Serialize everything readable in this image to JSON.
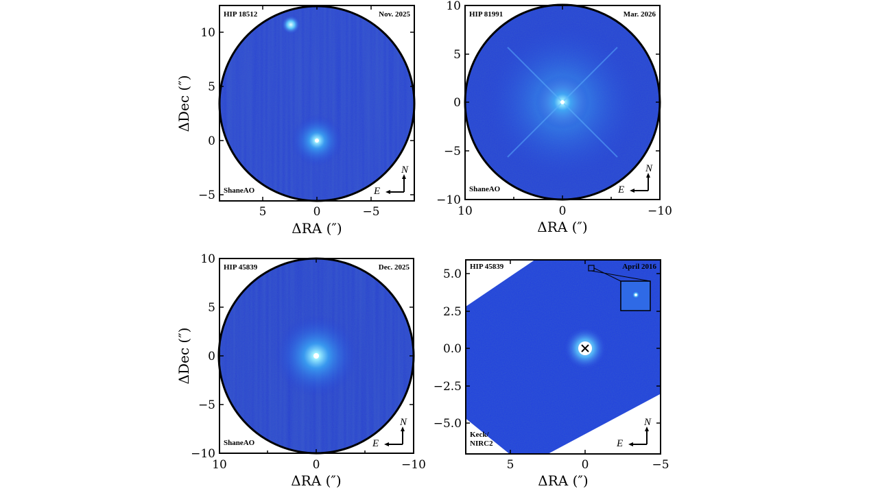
{
  "figure": {
    "panels": [
      {
        "target": "HIP 18512",
        "date": "Nov. 2025",
        "instrument": "ShaneAO",
        "compass": {
          "north": "N",
          "east": "E"
        },
        "xlabel": "ΔRA (″)",
        "ylabel": "ΔDec (″)",
        "x_ticks": [
          "5",
          "0",
          "−5"
        ],
        "y_ticks": [
          "10",
          "5",
          "0",
          "−5"
        ],
        "x_range": [
          8.5,
          -8.5
        ],
        "y_range": [
          -5.5,
          12.5
        ]
      },
      {
        "target": "HIP 81991",
        "date": "Mar. 2026",
        "instrument": "ShaneAO",
        "compass": {
          "north": "N",
          "east": "E"
        },
        "xlabel": "ΔRA (″)",
        "ylabel": "",
        "x_ticks": [
          "10",
          "0",
          "−10"
        ],
        "y_ticks": [
          "10",
          "5",
          "0",
          "−5",
          "−10"
        ],
        "x_range": [
          10,
          -10
        ],
        "y_range": [
          -10,
          10
        ]
      },
      {
        "target": "HIP 45839",
        "date": "Dec. 2025",
        "instrument": "ShaneAO",
        "compass": {
          "north": "N",
          "east": "E"
        },
        "xlabel": "ΔRA (″)",
        "ylabel": "ΔDec (″)",
        "x_ticks": [
          "10",
          "0",
          "−10"
        ],
        "y_ticks": [
          "10",
          "5",
          "0",
          "−5",
          "−10"
        ],
        "x_range": [
          10,
          -10
        ],
        "y_range": [
          -10,
          10
        ]
      },
      {
        "target": "HIP 45839",
        "date": "April 2016",
        "instrument": "Keck/\nNIRC2",
        "instrument_lines": [
          "Keck/",
          "NIRC2"
        ],
        "compass": {
          "north": "N",
          "east": "E"
        },
        "xlabel": "ΔRA (″)",
        "ylabel": "",
        "x_ticks": [
          "5",
          "0",
          "−5"
        ],
        "y_ticks": [
          "5.0",
          "2.5",
          "0.0",
          "−2.5",
          "−5.0"
        ],
        "x_range": [
          8,
          -5
        ],
        "y_range": [
          -7,
          6
        ]
      }
    ],
    "colors": {
      "background_blue": "#2337d8",
      "glow": "#46c8ff",
      "frame": "#000000"
    }
  }
}
